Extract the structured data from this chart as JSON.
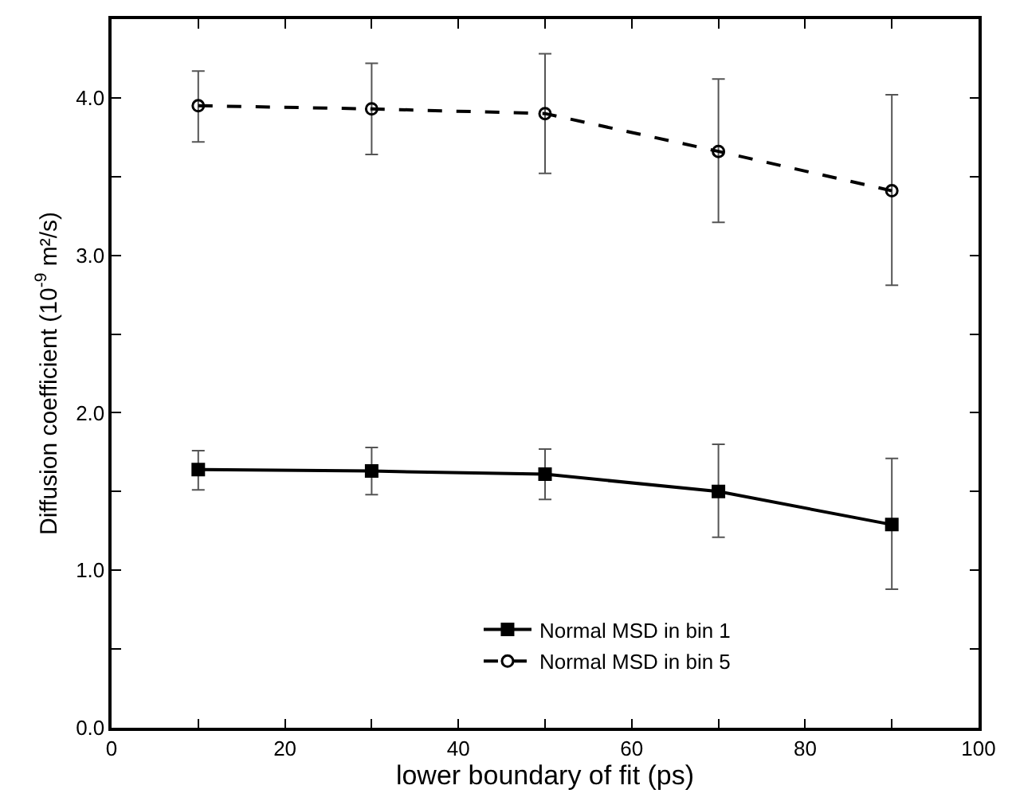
{
  "chart_data": {
    "type": "line",
    "xlabel": "lower boundary of fit (ps)",
    "ylabel": "Diffusion coefficient (10$^{-9}$ m²/s)",
    "x": [
      10,
      30,
      50,
      70,
      90
    ],
    "series": [
      {
        "name": "Normal MSD in bin 1",
        "color": "#000000",
        "marker": "square",
        "line_style": "solid",
        "values": [
          1.64,
          1.63,
          1.61,
          1.5,
          1.29
        ],
        "errors": [
          [
            1.51,
            1.76
          ],
          [
            1.48,
            1.78
          ],
          [
            1.45,
            1.77
          ],
          [
            1.21,
            1.8
          ],
          [
            0.88,
            1.71
          ]
        ]
      },
      {
        "name": "Normal MSD in bin 5",
        "color": "#000000",
        "marker": "circle-open",
        "line_style": "dashed",
        "values": [
          3.95,
          3.93,
          3.9,
          3.66,
          3.41
        ],
        "errors": [
          [
            3.72,
            4.17
          ],
          [
            3.64,
            4.22
          ],
          [
            3.52,
            4.28
          ],
          [
            3.21,
            4.12
          ],
          [
            2.81,
            4.02
          ]
        ]
      }
    ],
    "xlim": [
      0,
      100
    ],
    "xticks": [
      0,
      {
        "value": 10,
        "label": null
      },
      20,
      {
        "value": 30,
        "label": null
      },
      40,
      {
        "value": 50,
        "label": null
      },
      60,
      {
        "value": 70,
        "label": null
      },
      80,
      {
        "value": 90,
        "label": null
      },
      100
    ],
    "ylim": [
      0,
      4.5
    ],
    "yticks": [
      {
        "value": 0,
        "label": "0.0"
      },
      {
        "value": 0.5,
        "label": null
      },
      {
        "value": 1,
        "label": "1.0"
      },
      {
        "value": 1.5,
        "label": null
      },
      {
        "value": 2,
        "label": "2.0"
      },
      {
        "value": 2.5,
        "label": null
      },
      {
        "value": 3,
        "label": "3.0"
      },
      {
        "value": 3.5,
        "label": null
      },
      {
        "value": 4,
        "label": "4.0"
      }
    ],
    "legend": "bottom right"
  }
}
